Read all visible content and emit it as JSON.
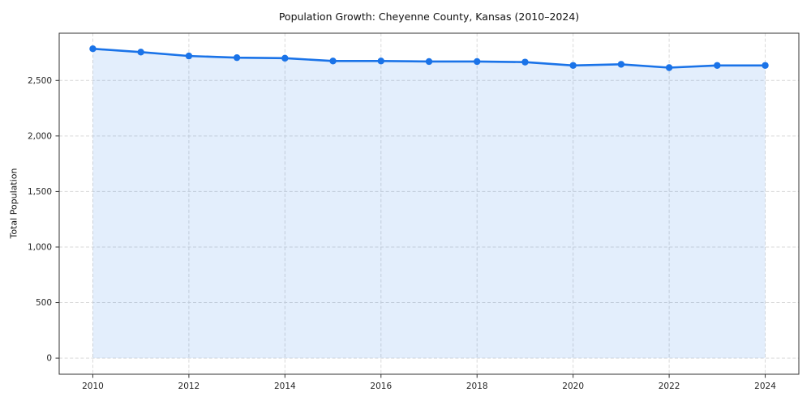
{
  "chart_data": {
    "type": "line",
    "title": "Population Growth: Cheyenne County, Kansas (2010–2024)",
    "xlabel": "",
    "ylabel": "Total Population",
    "x": [
      2010,
      2011,
      2012,
      2013,
      2014,
      2015,
      2016,
      2017,
      2018,
      2019,
      2020,
      2021,
      2022,
      2023,
      2024
    ],
    "series": [
      {
        "name": "Total Population",
        "values": [
          2785,
          2755,
          2720,
          2705,
          2700,
          2675,
          2675,
          2670,
          2670,
          2665,
          2635,
          2645,
          2615,
          2635,
          2635
        ]
      }
    ],
    "x_ticks": [
      2010,
      2012,
      2014,
      2016,
      2018,
      2020,
      2022,
      2024
    ],
    "y_ticks": [
      0,
      500,
      1000,
      1500,
      2000,
      2500
    ],
    "y_tick_labels": [
      "0",
      "500",
      "1,000",
      "1,500",
      "2,000",
      "2,500"
    ],
    "xlim": [
      2009.3,
      2024.7
    ],
    "ylim": [
      -145,
      2925
    ],
    "grid": true,
    "legend": "none",
    "line_color": "#1a73e8",
    "fill_opacity": 0.12,
    "grid_color": "#d9d9d9",
    "spine_color": "#333333",
    "marker": "circle"
  }
}
